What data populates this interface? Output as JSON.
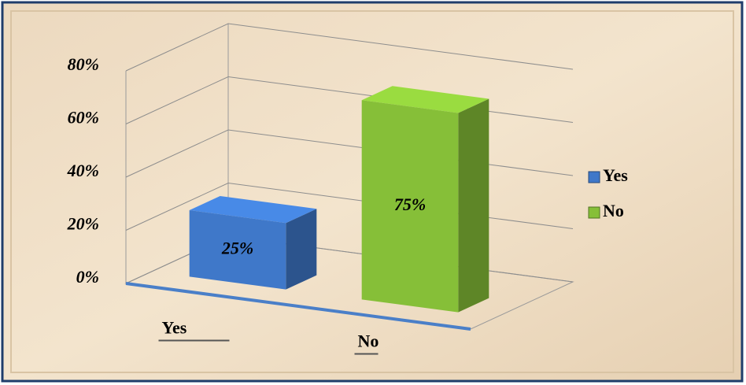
{
  "chart_data": {
    "type": "bar3d",
    "categories": [
      "Yes",
      "No"
    ],
    "values": [
      25,
      75
    ],
    "value_labels": [
      "25%",
      "75%"
    ],
    "colors": [
      "#3f78c9",
      "#86bf38"
    ],
    "ylim": [
      0,
      80
    ],
    "yticks": [
      {
        "value": 0,
        "label": "0%"
      },
      {
        "value": 20,
        "label": "20%"
      },
      {
        "value": 40,
        "label": "40%"
      },
      {
        "value": 60,
        "label": "60%"
      },
      {
        "value": 80,
        "label": "80%"
      }
    ],
    "grid": true,
    "legend": "right"
  }
}
